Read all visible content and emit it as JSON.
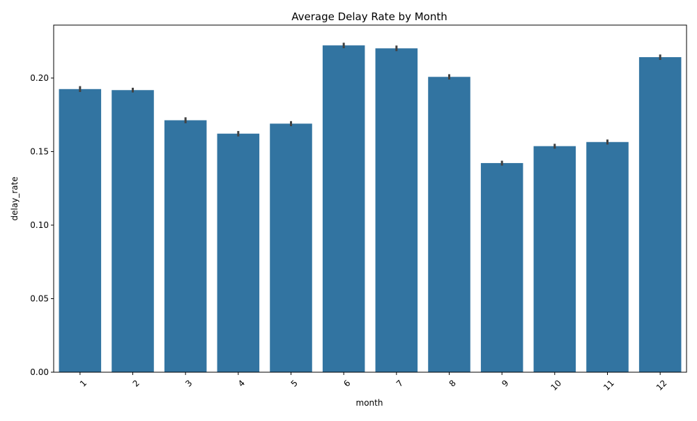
{
  "chart_data": {
    "type": "bar",
    "title": "Average Delay Rate by Month",
    "xlabel": "month",
    "ylabel": "delay_rate",
    "categories": [
      "1",
      "2",
      "3",
      "4",
      "5",
      "6",
      "7",
      "8",
      "9",
      "10",
      "11",
      "12"
    ],
    "values": [
      0.1925,
      0.1918,
      0.1713,
      0.1622,
      0.169,
      0.2222,
      0.2202,
      0.2008,
      0.1422,
      0.1537,
      0.1565,
      0.2142
    ],
    "error_low": [
      0.1905,
      0.1902,
      0.1693,
      0.1603,
      0.1673,
      0.2203,
      0.2183,
      0.199,
      0.1405,
      0.152,
      0.1548,
      0.2123
    ],
    "error_high": [
      0.1945,
      0.1934,
      0.1733,
      0.164,
      0.1707,
      0.224,
      0.2221,
      0.2026,
      0.1438,
      0.1553,
      0.1582,
      0.216
    ],
    "ylim": [
      0,
      0.236
    ],
    "yticks": [
      0.0,
      0.05,
      0.1,
      0.15,
      0.2
    ],
    "ytick_labels": [
      "0.00",
      "0.05",
      "0.10",
      "0.15",
      "0.20"
    ],
    "xtick_rotation": 45,
    "grid": false,
    "legend": "none",
    "bar_color": "#3274a1",
    "error_color": "#424242"
  }
}
